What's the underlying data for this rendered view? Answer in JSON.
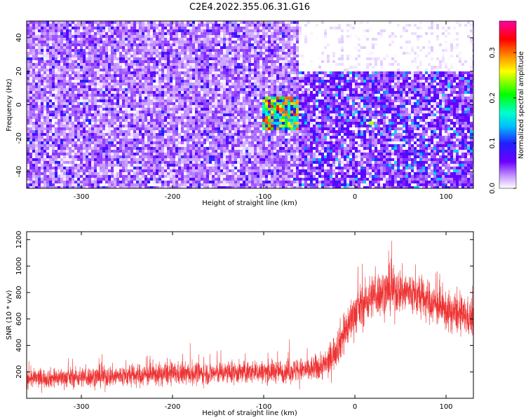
{
  "title": "C2E4.2022.355.06.31.G16",
  "chart_data": [
    {
      "type": "heatmap",
      "title": "C2E4.2022.355.06.31.G16",
      "xlabel": "Height of straight line (km)",
      "ylabel": "Frequency (Hz)",
      "xlim": [
        -360,
        130
      ],
      "ylim": [
        -50,
        50
      ],
      "x_ticks": [
        "-300",
        "-200",
        "-100",
        "0",
        "100"
      ],
      "y_ticks": [
        "-40",
        "-20",
        "0",
        "20",
        "40"
      ],
      "colorbar": {
        "label": "Normalized spectral amplitude",
        "range": [
          0.0,
          0.37
        ],
        "ticks": [
          "0.0",
          "0.1",
          "0.2",
          "0.3"
        ],
        "colormap": [
          "#ffffff",
          "#c89cff",
          "#6a00ff",
          "#2020ff",
          "#00bfff",
          "#00ffcc",
          "#00ff00",
          "#ffff00",
          "#ff8000",
          "#ff0000",
          "#ff00a0"
        ]
      },
      "description_regions": [
        {
          "x_range": [
            -360,
            -60
          ],
          "freq_range": [
            -50,
            50
          ],
          "amplitude": 0.05
        },
        {
          "x_range": [
            -60,
            130
          ],
          "freq_range": [
            -50,
            20
          ],
          "amplitude": 0.07
        },
        {
          "x_range": [
            -60,
            130
          ],
          "freq_range": [
            20,
            50
          ],
          "amplitude": 0.0
        },
        {
          "x_range": [
            -100,
            -60
          ],
          "freq_range": [
            -15,
            5
          ],
          "amplitude": 0.33
        }
      ],
      "peaks": [
        {
          "x": -80,
          "freq": -3,
          "amplitude": 0.3
        },
        {
          "x": 18,
          "freq": -11,
          "amplitude": 0.25
        }
      ],
      "grid": false,
      "legend": "colorbar-right"
    },
    {
      "type": "line",
      "xlabel": "Height of straight line (km)",
      "ylabel": "SNR (10 * v/v)",
      "xlim": [
        -360,
        130
      ],
      "ylim": [
        0,
        1260
      ],
      "x_ticks": [
        "-300",
        "-200",
        "-100",
        "0",
        "100"
      ],
      "y_ticks": [
        "200",
        "400",
        "600",
        "800",
        "1000",
        "1200"
      ],
      "series_color": "#ee3333",
      "envelope": {
        "x": [
          -360,
          -300,
          -250,
          -200,
          -150,
          -100,
          -50,
          -30,
          -15,
          0,
          20,
          40,
          60,
          80,
          100,
          130
        ],
        "center": [
          150,
          160,
          170,
          185,
          190,
          200,
          215,
          260,
          450,
          650,
          780,
          820,
          800,
          740,
          660,
          600
        ],
        "spread": [
          90,
          100,
          110,
          110,
          110,
          110,
          120,
          150,
          200,
          220,
          220,
          230,
          220,
          200,
          190,
          180
        ]
      },
      "grid": false
    }
  ]
}
